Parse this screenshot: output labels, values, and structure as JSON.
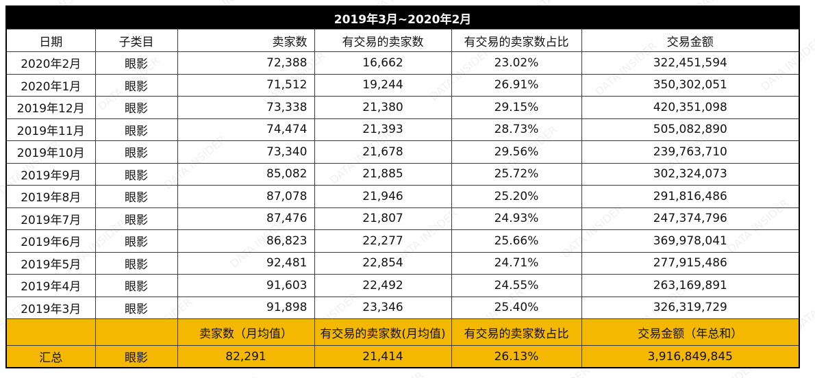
{
  "title": "2019年3月~2020年2月",
  "headers": [
    "日期",
    "子类目",
    "卖家数",
    "有交易的卖家数",
    "有交易的卖家数占比",
    "交易金额"
  ],
  "rows": [
    [
      "2020年2月",
      "眼影",
      "72,388",
      "16,662",
      "23.02%",
      "322,451,594"
    ],
    [
      "2020年1月",
      "眼影",
      "71,512",
      "19,244",
      "26.91%",
      "350,302,051"
    ],
    [
      "2019年12月",
      "眼影",
      "73,338",
      "21,380",
      "29.15%",
      "420,351,098"
    ],
    [
      "2019年11月",
      "眼影",
      "74,474",
      "21,393",
      "28.73%",
      "505,082,890"
    ],
    [
      "2019年10月",
      "眼影",
      "73,340",
      "21,678",
      "29.56%",
      "239,763,710"
    ],
    [
      "2019年9月",
      "眼影",
      "85,082",
      "21,885",
      "25.72%",
      "302,324,073"
    ],
    [
      "2019年8月",
      "眼影",
      "87,078",
      "21,946",
      "25.20%",
      "291,816,486"
    ],
    [
      "2019年7月",
      "眼影",
      "87,476",
      "21,807",
      "24.93%",
      "247,374,796"
    ],
    [
      "2019年6月",
      "眼影",
      "86,823",
      "22,277",
      "25.66%",
      "369,978,041"
    ],
    [
      "2019年5月",
      "眼影",
      "92,481",
      "22,854",
      "24.71%",
      "277,915,486"
    ],
    [
      "2019年4月",
      "眼影",
      "91,603",
      "22,492",
      "24.55%",
      "263,169,891"
    ],
    [
      "2019年3月",
      "眼影",
      "91,898",
      "23,346",
      "25.40%",
      "326,319,729"
    ]
  ],
  "summary_headers": [
    "",
    "",
    "卖家数（月均值）",
    "有交易的卖家数(月均值)",
    "有交易的卖家数占比",
    "交易金额（年总和）"
  ],
  "summary_row": [
    "汇总",
    "眼影",
    "82,291",
    "21,414",
    "26.13%",
    "3,916,849,845"
  ],
  "watermark_text": "DATA INSIDER"
}
